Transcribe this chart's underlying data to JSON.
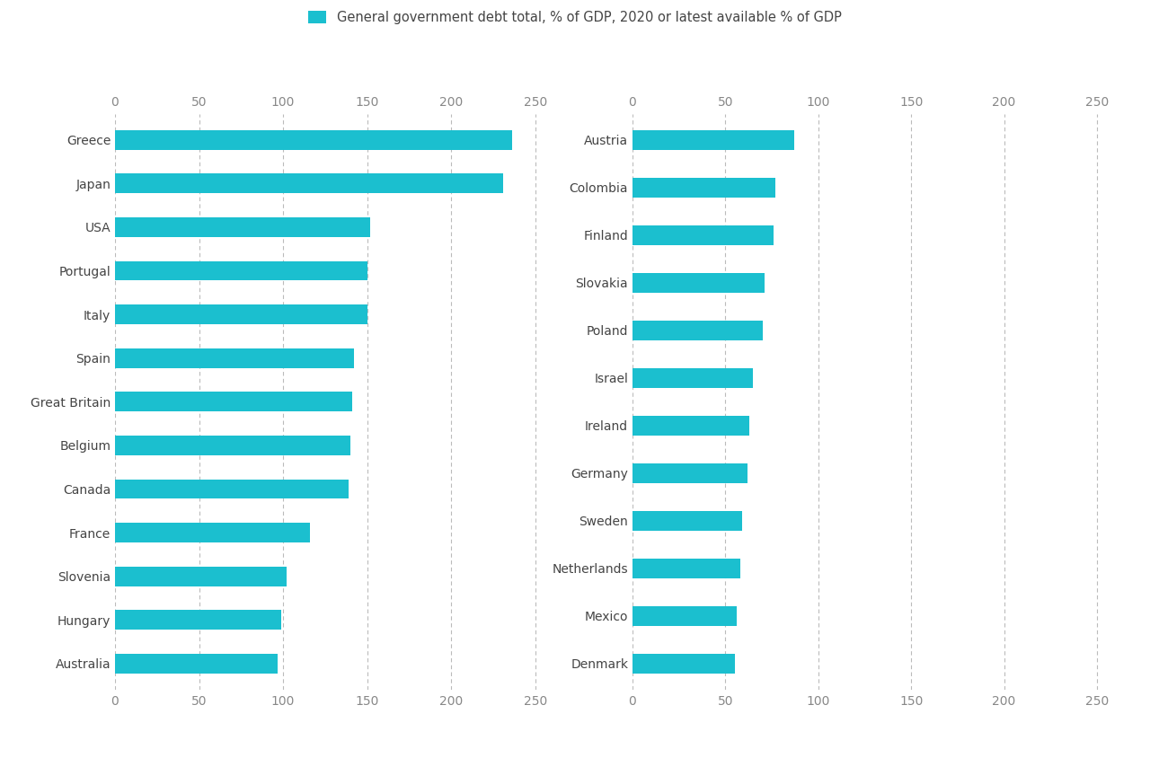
{
  "left_countries": [
    "Greece",
    "Japan",
    "USA",
    "Portugal",
    "Italy",
    "Spain",
    "Great Britain",
    "Belgium",
    "Canada",
    "France",
    "Slovenia",
    "Hungary",
    "Australia"
  ],
  "left_values": [
    236,
    231,
    152,
    150,
    150,
    142,
    141,
    140,
    139,
    116,
    102,
    99,
    97
  ],
  "right_countries": [
    "Austria",
    "Colombia",
    "Finland",
    "Slovakia",
    "Poland",
    "Israel",
    "Ireland",
    "Germany",
    "Sweden",
    "Netherlands",
    "Mexico",
    "Denmark"
  ],
  "right_values": [
    87,
    77,
    76,
    71,
    70,
    65,
    63,
    62,
    59,
    58,
    56,
    55
  ],
  "bar_color": "#1BBFCF",
  "legend_label": "General government debt total, % of GDP, 2020 or latest available % of GDP",
  "xlim": [
    0,
    260
  ],
  "xticks": [
    0,
    50,
    100,
    150,
    200,
    250
  ],
  "background_color": "#FFFFFF",
  "grid_color": "#BBBBBB",
  "tick_color": "#888888",
  "label_fontsize": 10,
  "tick_fontsize": 10
}
